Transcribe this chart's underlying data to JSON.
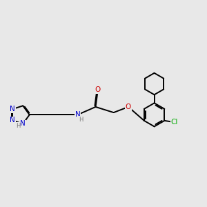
{
  "background_color": "#e8e8e8",
  "atom_colors": {
    "C": "#000000",
    "N": "#0000cc",
    "O": "#cc0000",
    "Cl": "#00aa00",
    "H": "#777777"
  },
  "bond_color": "#000000",
  "bond_width": 1.4,
  "font_size_atoms": 7.5,
  "font_size_H": 6.0
}
